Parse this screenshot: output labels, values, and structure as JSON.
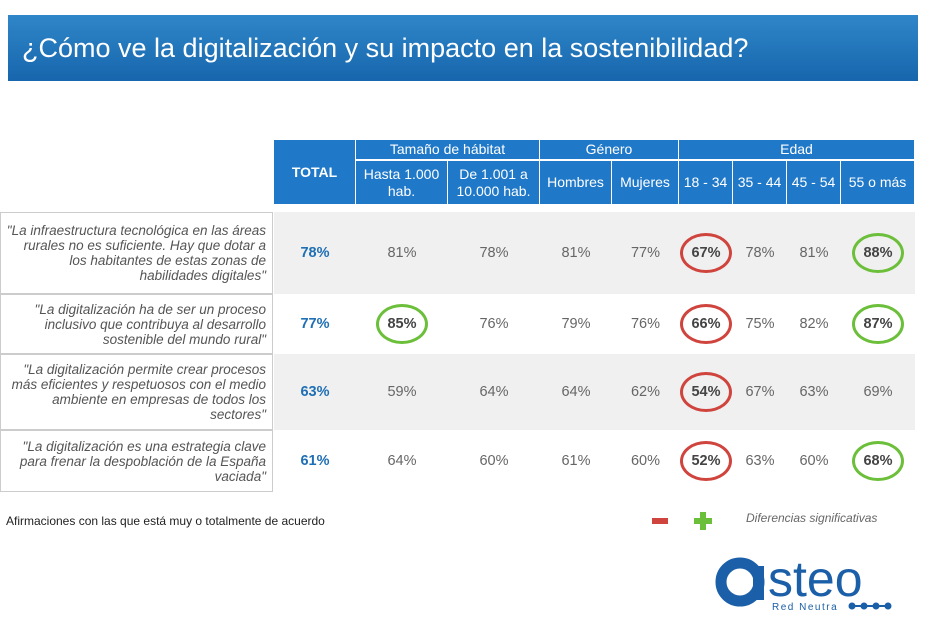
{
  "title": "¿Cómo ve la digitalización y su impacto en la sostenibilidad?",
  "table": {
    "total_header": "TOTAL",
    "groups": [
      {
        "label": "Tamaño de hábitat",
        "columns": [
          "Hasta 1.000 hab.",
          "De 1.001 a 10.000 hab."
        ]
      },
      {
        "label": "Género",
        "columns": [
          "Hombres",
          "Mujeres"
        ]
      },
      {
        "label": "Edad",
        "columns": [
          "18 - 34",
          "35 - 44",
          "45 - 54",
          "55 o más"
        ]
      }
    ],
    "rows": [
      {
        "statement": "\"La infraestructura tecnológica en las áreas rurales no es suficiente. Hay que dotar a los habitantes de estas zonas de habilidades digitales\"",
        "values": [
          "78%",
          "81%",
          "78%",
          "81%",
          "77%",
          "67%",
          "78%",
          "81%",
          "88%"
        ],
        "significance": [
          null,
          null,
          null,
          null,
          null,
          "lower",
          null,
          null,
          "higher"
        ]
      },
      {
        "statement": "\"La digitalización ha de ser un proceso inclusivo que contribuya al desarrollo sostenible del mundo rural\"",
        "values": [
          "77%",
          "85%",
          "76%",
          "79%",
          "76%",
          "66%",
          "75%",
          "82%",
          "87%"
        ],
        "significance": [
          null,
          "higher",
          null,
          null,
          null,
          "lower",
          null,
          null,
          "higher"
        ]
      },
      {
        "statement": "\"La digitalización permite crear procesos más eficientes y respetuosos con el medio ambiente en empresas de todos los sectores\"",
        "values": [
          "63%",
          "59%",
          "64%",
          "64%",
          "62%",
          "54%",
          "67%",
          "63%",
          "69%"
        ],
        "significance": [
          null,
          null,
          null,
          null,
          null,
          "lower",
          null,
          null,
          null
        ]
      },
      {
        "statement": "\"La digitalización es una estrategia clave para frenar la despoblación de la España vaciada\"",
        "values": [
          "61%",
          "64%",
          "60%",
          "61%",
          "60%",
          "52%",
          "63%",
          "60%",
          "68%"
        ],
        "significance": [
          null,
          null,
          null,
          null,
          null,
          "lower",
          null,
          null,
          "higher"
        ]
      }
    ]
  },
  "footnote": "Afirmaciones con las que está muy o totalmente de acuerdo",
  "legend": {
    "label": "Diferencias significativas",
    "lower_color": "#d0443e",
    "higher_color": "#6cbf3a"
  },
  "logo": {
    "name": "steo",
    "tagline": "Red Neutra",
    "color": "#1a5fa8"
  }
}
